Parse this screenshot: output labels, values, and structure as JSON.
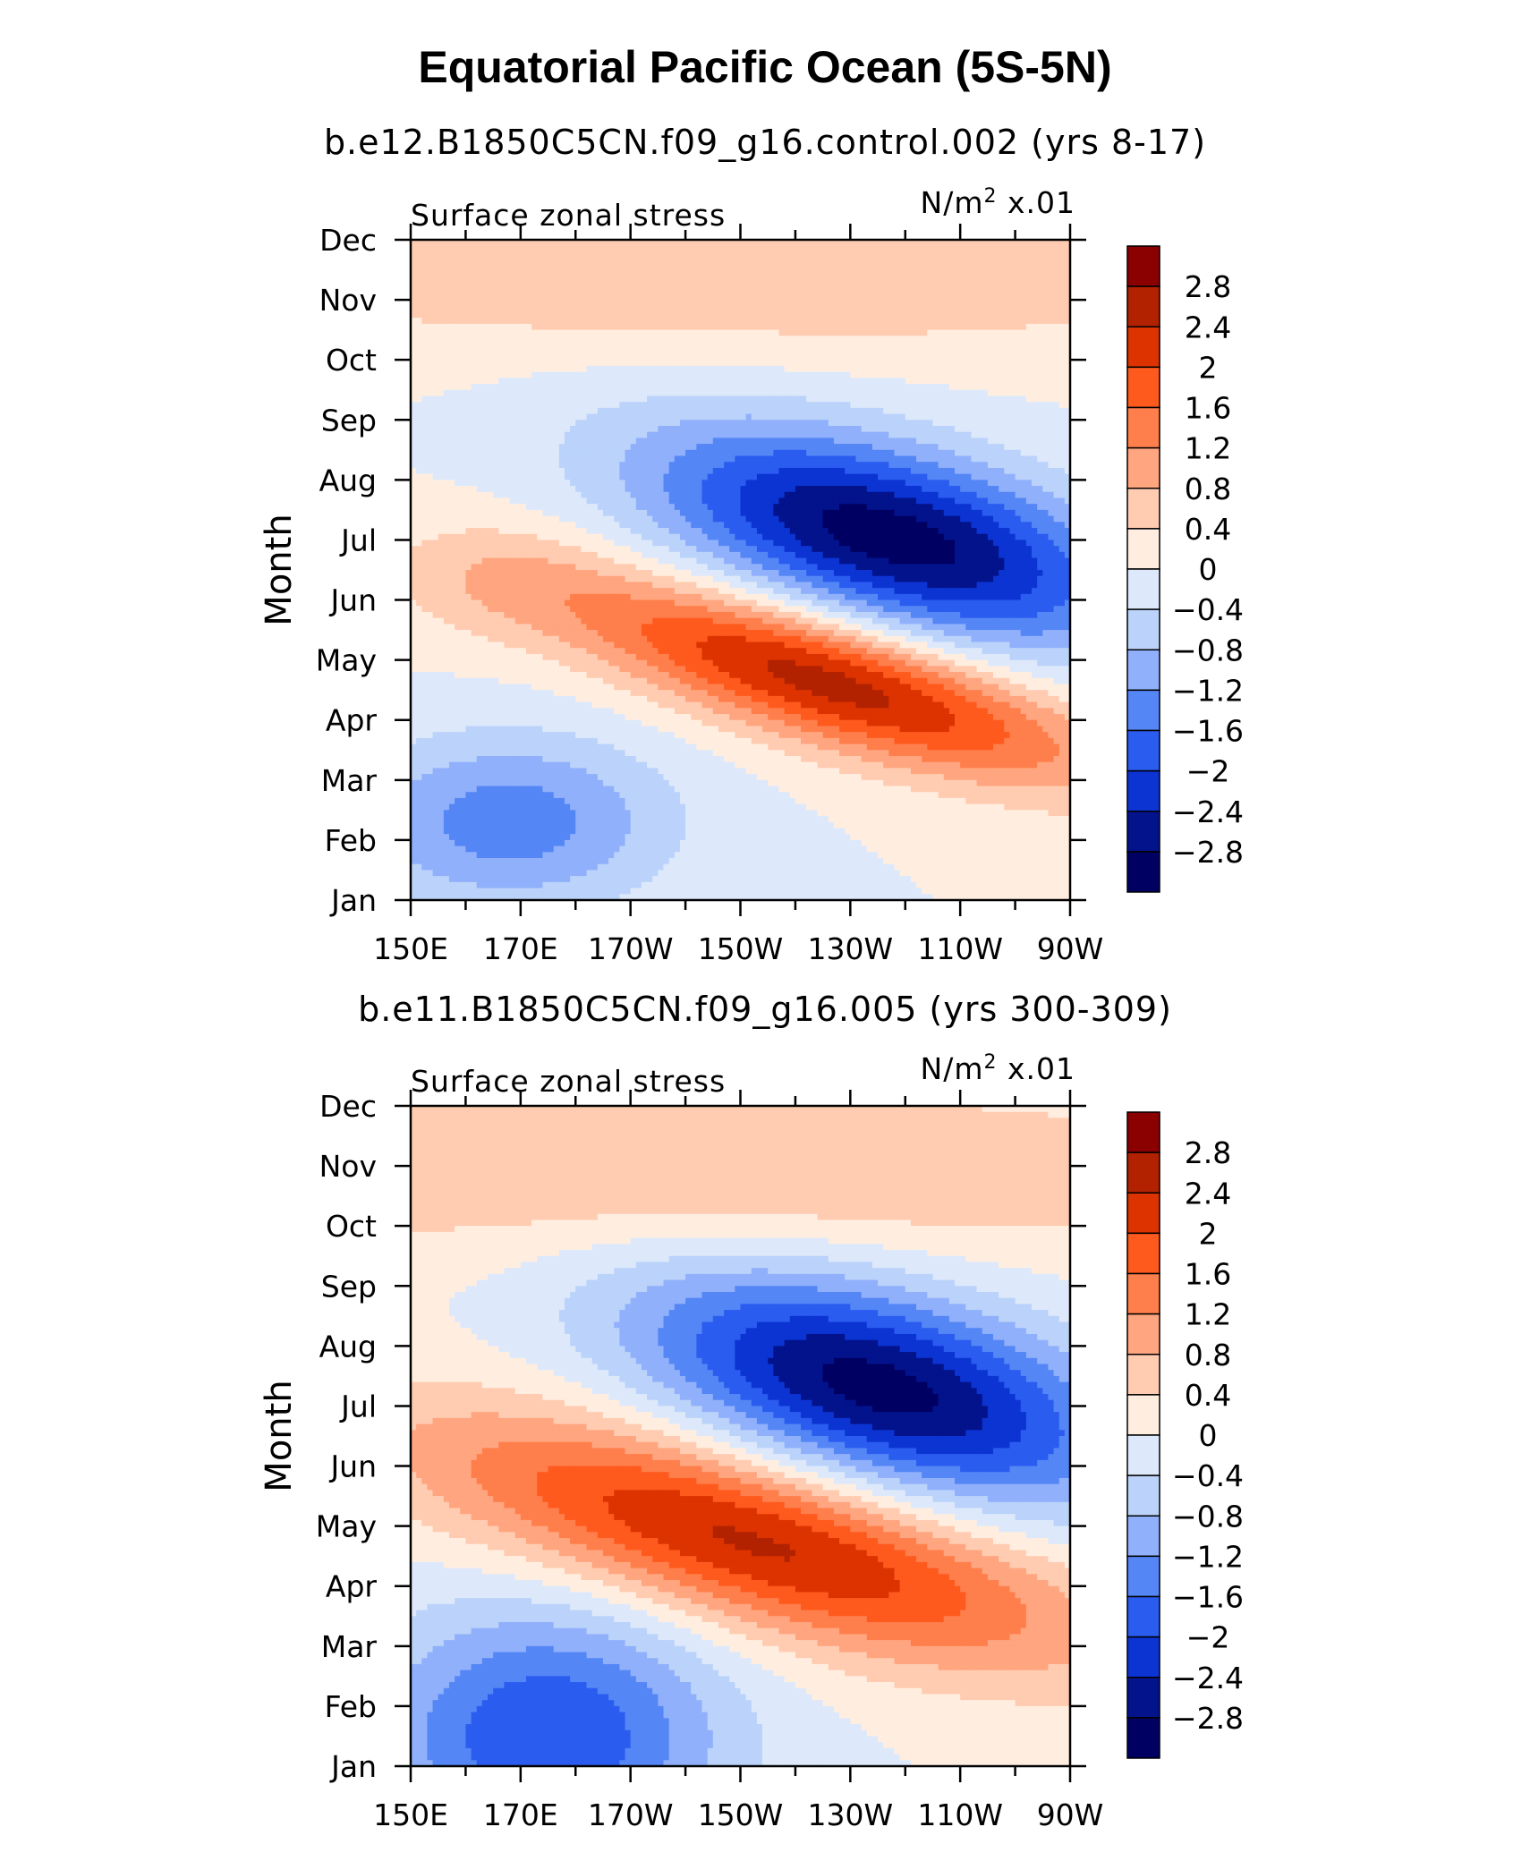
{
  "title": "Equatorial Pacific Ocean (5S-5N)",
  "chart_data": [
    {
      "type": "heatmap",
      "subtitle": "b.e12.B1850C5CN.f09_g16.control.002 (yrs 8-17)",
      "left_label": "Surface zonal stress",
      "right_label_prefix": "N/m",
      "right_label_sup": "2",
      "right_label_suffix": " x.01",
      "xlabel": "",
      "ylabel": "Month",
      "x_range": [
        150,
        270
      ],
      "y_range": [
        0,
        11
      ],
      "x_ticks": [
        150,
        170,
        190,
        210,
        230,
        250,
        270
      ],
      "x_tick_labels": [
        "150E",
        "170E",
        "170W",
        "150W",
        "130W",
        "110W",
        "90W"
      ],
      "y_tick_labels": [
        "Jan",
        "Feb",
        "Mar",
        "Apr",
        "May",
        "Jun",
        "Jul",
        "Aug",
        "Sep",
        "Oct",
        "Nov",
        "Dec"
      ],
      "colorbar_levels": [
        "2.8",
        "2.4",
        "2",
        "1.6",
        "1.2",
        "0.8",
        "0.4",
        "0",
        "−0.4",
        "−0.8",
        "−1.2",
        "−1.6",
        "−2",
        "−2.4",
        "−2.8"
      ],
      "features": [
        {
          "lon": 237,
          "month": 6.05,
          "amp": -3.05,
          "slon": 30,
          "smon": 1.05,
          "tilt": 0.022
        },
        {
          "lon": 226,
          "month": 3.65,
          "amp": 2.65,
          "slon": 34,
          "smon": 0.75,
          "tilt": 0.026
        },
        {
          "lon": 168,
          "month": 1.3,
          "amp": -1.45,
          "slon": 20,
          "smon": 1.0,
          "tilt": 0.0
        },
        {
          "lon": 210,
          "month": 10.3,
          "amp": 0.7,
          "slon": 80,
          "smon": 0.9,
          "tilt": 0.0
        },
        {
          "lon": 165,
          "month": 5.3,
          "amp": 0.45,
          "slon": 14,
          "smon": 0.7,
          "tilt": 0.0
        }
      ]
    },
    {
      "type": "heatmap",
      "subtitle": "b.e11.B1850C5CN.f09_g16.005 (yrs 300-309)",
      "left_label": "Surface zonal stress",
      "right_label_prefix": "N/m",
      "right_label_sup": "2",
      "right_label_suffix": " x.01",
      "xlabel": "",
      "ylabel": "Month",
      "x_range": [
        150,
        270
      ],
      "y_range": [
        0,
        11
      ],
      "x_ticks": [
        150,
        170,
        190,
        210,
        230,
        250,
        270
      ],
      "x_tick_labels": [
        "150E",
        "170E",
        "170W",
        "150W",
        "130W",
        "110W",
        "90W"
      ],
      "y_tick_labels": [
        "Jan",
        "Feb",
        "Mar",
        "Apr",
        "May",
        "Jun",
        "Jul",
        "Aug",
        "Sep",
        "Oct",
        "Nov",
        "Dec"
      ],
      "colorbar_levels": [
        "2.8",
        "2.4",
        "2",
        "1.6",
        "1.2",
        "0.8",
        "0.4",
        "0",
        "−0.4",
        "−0.8",
        "−1.2",
        "−1.6",
        "−2",
        "−2.4",
        "−2.8"
      ],
      "features": [
        {
          "lon": 235,
          "month": 6.3,
          "amp": -3.0,
          "slon": 30,
          "smon": 1.15,
          "tilt": 0.022
        },
        {
          "lon": 212,
          "month": 3.75,
          "amp": 2.55,
          "slon": 42,
          "smon": 1.0,
          "tilt": 0.024
        },
        {
          "lon": 175,
          "month": 0.5,
          "amp": -2.0,
          "slon": 22,
          "smon": 1.5,
          "tilt": 0.0
        },
        {
          "lon": 200,
          "month": 9.9,
          "amp": 0.85,
          "slon": 85,
          "smon": 1.0,
          "tilt": 0.0
        }
      ]
    }
  ]
}
